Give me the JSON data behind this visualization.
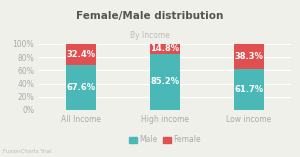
{
  "title": "Female/Male distribution",
  "subtitle": "By Income",
  "categories": [
    "All Income",
    "High income",
    "Low income"
  ],
  "male_values": [
    67.6,
    85.2,
    61.7
  ],
  "female_values": [
    32.4,
    14.8,
    38.3
  ],
  "male_color": "#4bb8b8",
  "female_color": "#e05050",
  "bar_width": 0.35,
  "ylim": [
    0,
    100
  ],
  "yticks": [
    0,
    20,
    40,
    60,
    80,
    100
  ],
  "ytick_labels": [
    "0%",
    "20%",
    "40%",
    "60%",
    "80%",
    "100%"
  ],
  "bg_color": "#f0f0eb",
  "grid_color": "#ffffff",
  "label_color": "#ffffff",
  "footer_text": "FusionCharts Trial",
  "legend_labels": [
    "Male",
    "Female"
  ],
  "title_fontsize": 7.5,
  "subtitle_fontsize": 5.5,
  "tick_fontsize": 5.5,
  "label_fontsize": 6.0,
  "title_color": "#555555",
  "tick_color": "#aaaaaa",
  "subtitle_color": "#bbbbbb"
}
